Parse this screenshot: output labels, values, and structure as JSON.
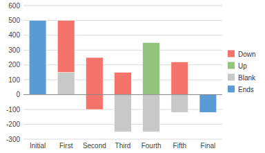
{
  "chart_data": {
    "type": "bar",
    "categories": [
      "Initial",
      "First",
      "Second",
      "Third",
      "Fourth",
      "Fifth",
      "Final"
    ],
    "series": [
      {
        "name": "Down",
        "color": "#F4736A",
        "values": [
          null,
          350,
          350,
          150,
          null,
          220,
          null
        ],
        "bottoms": [
          null,
          150,
          -100,
          0,
          null,
          0,
          null
        ]
      },
      {
        "name": "Up",
        "color": "#93C47D",
        "values": [
          null,
          null,
          null,
          null,
          350,
          null,
          null
        ],
        "bottoms": [
          null,
          null,
          null,
          null,
          0,
          null,
          null
        ]
      },
      {
        "name": "Blank",
        "color": "#C8C8C8",
        "values": [
          0,
          150,
          100,
          250,
          250,
          120,
          0
        ],
        "bottoms": [
          0,
          0,
          -100,
          -250,
          -250,
          -120,
          0
        ]
      },
      {
        "name": "Ends",
        "color": "#5B9BD5",
        "values": [
          500,
          null,
          null,
          null,
          null,
          null,
          120
        ],
        "bottoms": [
          0,
          null,
          null,
          null,
          null,
          null,
          -120
        ]
      }
    ],
    "ylim": [
      -300,
      600
    ],
    "yticks": [
      -300,
      -200,
      -100,
      0,
      100,
      200,
      300,
      400,
      500,
      600
    ],
    "grid": true,
    "legend": "right"
  }
}
